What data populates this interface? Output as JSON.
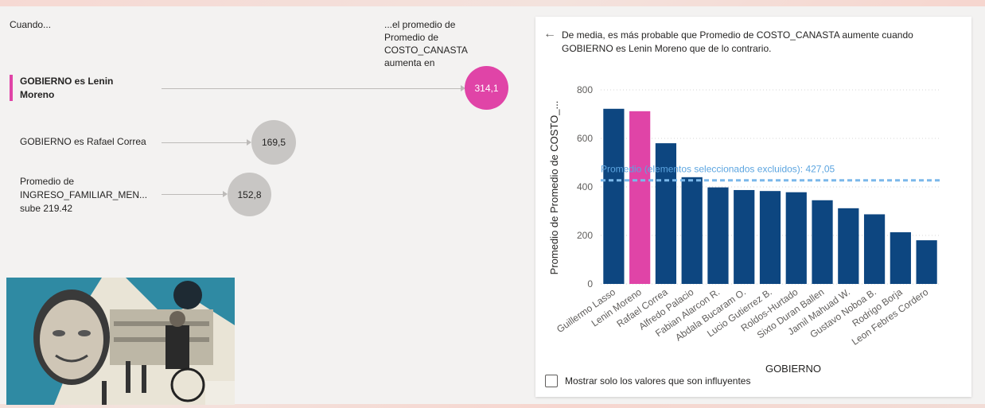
{
  "header": {
    "when_label": "Cuando...",
    "result_label": "...el promedio de Promedio de COSTO_CANASTA aumenta en"
  },
  "factors": [
    {
      "label": "GOBIERNO es Lenin Moreno",
      "value": "314,1",
      "selected": true
    },
    {
      "label": "GOBIERNO es Rafael Correa",
      "value": "169,5",
      "selected": false
    },
    {
      "label": "Promedio de INGRESO_FAMILIAR_MEN... sube 219.42",
      "value": "152,8",
      "selected": false
    }
  ],
  "panel": {
    "explanation": "De media, es más probable que Promedio de COSTO_CANASTA aumente cuando GOBIERNO es Lenin Moreno que de lo contrario.",
    "checkbox_label": "Mostrar solo los valores que son influyentes"
  },
  "chart_data": {
    "type": "bar",
    "categories": [
      "Guillermo Lasso",
      "Lenin Moreno",
      "Rafael Correa",
      "Alfredo Palacio",
      "Fabian Alarcon R.",
      "Abdala Bucaram O.",
      "Lucio Gutierrez B.",
      "Roldos-Hurtado",
      "Sixto Duran Ballen",
      "Jamil Mahuad W.",
      "Gustavo Noboa B.",
      "Rodrigo Borja",
      "Leon Febres Cordero"
    ],
    "values": [
      722,
      712,
      580,
      440,
      398,
      387,
      383,
      378,
      345,
      312,
      287,
      213,
      180
    ],
    "highlighted": "Lenin Moreno",
    "xlabel": "GOBIERNO",
    "ylabel": "Promedio de Promedio de COSTO_...",
    "yticks": [
      0,
      200,
      400,
      600,
      800
    ],
    "ylim": [
      0,
      800
    ],
    "reference_line": {
      "label": "Promedio (elementos seleccionados excluidos): 427,05",
      "value": 427.05
    },
    "colors": {
      "bar": "#0d4680",
      "highlight": "#e044a7",
      "reference": "#7bb8ea",
      "grid": "#d6d6d6"
    }
  }
}
